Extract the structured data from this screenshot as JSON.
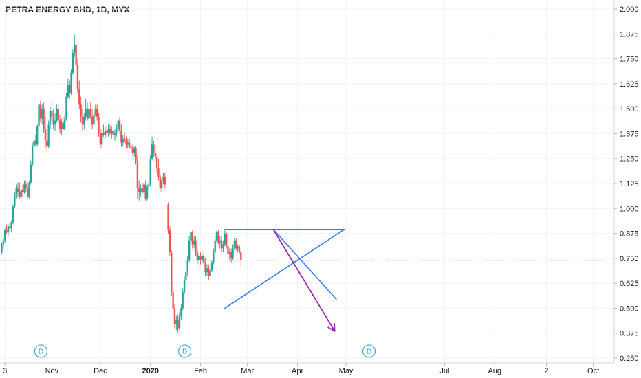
{
  "chart_data": {
    "type": "candlestick",
    "title": "PETRA ENERGY BHD, 1D, MYX",
    "ylim": [
      0.25,
      2.0
    ],
    "y_ticks": [
      "2.000",
      "1.875",
      "1.750",
      "1.625",
      "1.500",
      "1.375",
      "1.250",
      "1.125",
      "1.000",
      "0.875",
      "0.750",
      "0.625",
      "0.500",
      "0.375",
      "0.250"
    ],
    "x_ticks": [
      {
        "label": "3",
        "day": 2
      },
      {
        "label": "Nov",
        "day": 31
      },
      {
        "label": "Dec",
        "day": 61
      },
      {
        "label": "2020",
        "day": 92,
        "bold": true
      },
      {
        "label": "Feb",
        "day": 123
      },
      {
        "label": "Mar",
        "day": 152
      },
      {
        "label": "Apr",
        "day": 183
      },
      {
        "label": "May",
        "day": 213
      },
      {
        "label": "Jul",
        "day": 274
      },
      {
        "label": "Aug",
        "day": 305
      },
      {
        "label": "2",
        "day": 337
      },
      {
        "label": "Oct",
        "day": 366
      }
    ],
    "x_range_days": [
      0,
      380
    ],
    "current_price": 0.74,
    "colors": {
      "up": "#26a69a",
      "down": "#ef5350",
      "price_line": "#26a69a",
      "trendline": "#3179f5",
      "arrow": "#9c27b0",
      "grid": "#f0f3fa",
      "badge": "#2196f3"
    },
    "dividend_markers": [
      {
        "label": "D",
        "day": -3
      },
      {
        "label": "D",
        "day": 86
      },
      {
        "label": "D",
        "day": 200
      }
    ],
    "candles": [
      [
        0,
        0.78,
        0.83,
        0.77,
        0.82
      ],
      [
        1,
        0.82,
        0.85,
        0.8,
        0.84
      ],
      [
        2,
        0.84,
        0.9,
        0.83,
        0.89
      ],
      [
        3,
        0.89,
        0.92,
        0.87,
        0.88
      ],
      [
        4,
        0.88,
        0.92,
        0.86,
        0.91
      ],
      [
        5,
        0.91,
        0.93,
        0.89,
        0.9
      ],
      [
        6,
        0.9,
        0.94,
        0.88,
        0.93
      ],
      [
        7,
        0.93,
        1.02,
        0.92,
        1.01
      ],
      [
        8,
        1.01,
        1.08,
        1.0,
        1.07
      ],
      [
        9,
        1.07,
        1.12,
        1.05,
        1.1
      ],
      [
        10,
        1.1,
        1.13,
        1.06,
        1.08
      ],
      [
        11,
        1.08,
        1.13,
        1.05,
        1.06
      ],
      [
        12,
        1.06,
        1.1,
        1.03,
        1.09
      ],
      [
        13,
        1.09,
        1.12,
        1.06,
        1.08
      ],
      [
        14,
        1.08,
        1.14,
        1.07,
        1.12
      ],
      [
        15,
        1.12,
        1.14,
        1.08,
        1.1
      ],
      [
        16,
        1.1,
        1.13,
        1.05,
        1.06
      ],
      [
        17,
        1.06,
        1.14,
        1.05,
        1.13
      ],
      [
        18,
        1.13,
        1.24,
        1.12,
        1.22
      ],
      [
        19,
        1.22,
        1.33,
        1.21,
        1.31
      ],
      [
        20,
        1.31,
        1.36,
        1.29,
        1.34
      ],
      [
        21,
        1.34,
        1.37,
        1.31,
        1.32
      ],
      [
        22,
        1.32,
        1.42,
        1.31,
        1.41
      ],
      [
        23,
        1.41,
        1.55,
        1.4,
        1.52
      ],
      [
        24,
        1.52,
        1.54,
        1.43,
        1.45
      ],
      [
        25,
        1.45,
        1.52,
        1.42,
        1.5
      ],
      [
        26,
        1.5,
        1.53,
        1.38,
        1.4
      ],
      [
        27,
        1.4,
        1.46,
        1.3,
        1.34
      ],
      [
        28,
        1.34,
        1.4,
        1.28,
        1.31
      ],
      [
        29,
        1.31,
        1.44,
        1.3,
        1.42
      ],
      [
        30,
        1.42,
        1.51,
        1.4,
        1.49
      ],
      [
        31,
        1.49,
        1.54,
        1.44,
        1.46
      ],
      [
        32,
        1.46,
        1.5,
        1.4,
        1.42
      ],
      [
        33,
        1.42,
        1.48,
        1.39,
        1.44
      ],
      [
        34,
        1.44,
        1.52,
        1.43,
        1.5
      ],
      [
        35,
        1.5,
        1.52,
        1.43,
        1.44
      ],
      [
        36,
        1.44,
        1.47,
        1.38,
        1.4
      ],
      [
        37,
        1.4,
        1.45,
        1.37,
        1.43
      ],
      [
        38,
        1.43,
        1.46,
        1.39,
        1.4
      ],
      [
        39,
        1.4,
        1.47,
        1.39,
        1.45
      ],
      [
        40,
        1.45,
        1.58,
        1.44,
        1.56
      ],
      [
        41,
        1.56,
        1.65,
        1.55,
        1.62
      ],
      [
        42,
        1.62,
        1.64,
        1.55,
        1.58
      ],
      [
        43,
        1.58,
        1.7,
        1.57,
        1.68
      ],
      [
        44,
        1.68,
        1.8,
        1.67,
        1.78
      ],
      [
        45,
        1.78,
        1.87,
        1.76,
        1.82
      ],
      [
        46,
        1.82,
        1.84,
        1.7,
        1.72
      ],
      [
        47,
        1.72,
        1.75,
        1.58,
        1.6
      ],
      [
        48,
        1.6,
        1.64,
        1.5,
        1.52
      ],
      [
        49,
        1.52,
        1.56,
        1.43,
        1.46
      ],
      [
        50,
        1.46,
        1.5,
        1.39,
        1.42
      ],
      [
        51,
        1.42,
        1.48,
        1.4,
        1.46
      ],
      [
        52,
        1.46,
        1.55,
        1.44,
        1.5
      ],
      [
        53,
        1.5,
        1.53,
        1.44,
        1.45
      ],
      [
        54,
        1.45,
        1.52,
        1.44,
        1.5
      ],
      [
        55,
        1.5,
        1.53,
        1.45,
        1.46
      ],
      [
        56,
        1.46,
        1.5,
        1.4,
        1.42
      ],
      [
        57,
        1.42,
        1.48,
        1.41,
        1.47
      ],
      [
        58,
        1.47,
        1.52,
        1.46,
        1.5
      ],
      [
        59,
        1.5,
        1.52,
        1.44,
        1.46
      ],
      [
        60,
        1.46,
        1.48,
        1.36,
        1.38
      ],
      [
        61,
        1.38,
        1.4,
        1.3,
        1.32
      ],
      [
        62,
        1.32,
        1.4,
        1.3,
        1.38
      ],
      [
        63,
        1.38,
        1.42,
        1.36,
        1.37
      ],
      [
        64,
        1.37,
        1.41,
        1.35,
        1.39
      ],
      [
        65,
        1.39,
        1.41,
        1.36,
        1.38
      ],
      [
        66,
        1.38,
        1.42,
        1.36,
        1.4
      ],
      [
        67,
        1.4,
        1.42,
        1.37,
        1.38
      ],
      [
        68,
        1.38,
        1.41,
        1.35,
        1.39
      ],
      [
        69,
        1.39,
        1.41,
        1.36,
        1.37
      ],
      [
        70,
        1.37,
        1.4,
        1.34,
        1.38
      ],
      [
        71,
        1.38,
        1.42,
        1.36,
        1.4
      ],
      [
        72,
        1.4,
        1.45,
        1.39,
        1.44
      ],
      [
        73,
        1.44,
        1.46,
        1.38,
        1.39
      ],
      [
        74,
        1.39,
        1.42,
        1.31,
        1.33
      ],
      [
        75,
        1.33,
        1.37,
        1.31,
        1.35
      ],
      [
        76,
        1.35,
        1.38,
        1.33,
        1.34
      ],
      [
        77,
        1.34,
        1.36,
        1.3,
        1.32
      ],
      [
        78,
        1.32,
        1.35,
        1.3,
        1.33
      ],
      [
        79,
        1.33,
        1.35,
        1.3,
        1.31
      ],
      [
        80,
        1.31,
        1.33,
        1.28,
        1.3
      ],
      [
        81,
        1.3,
        1.32,
        1.27,
        1.28
      ],
      [
        82,
        1.28,
        1.31,
        1.26,
        1.3
      ],
      [
        83,
        1.3,
        1.31,
        1.22,
        1.24
      ],
      [
        84,
        1.24,
        1.27,
        1.05,
        1.1
      ],
      [
        85,
        1.1,
        1.14,
        1.04,
        1.08
      ],
      [
        86,
        1.08,
        1.12,
        1.06,
        1.1
      ],
      [
        87,
        1.1,
        1.13,
        1.07,
        1.08
      ],
      [
        88,
        1.08,
        1.13,
        1.07,
        1.12
      ],
      [
        89,
        1.12,
        1.14,
        1.04,
        1.05
      ],
      [
        90,
        1.05,
        1.12,
        1.04,
        1.11
      ],
      [
        91,
        1.11,
        1.14,
        1.09,
        1.12
      ],
      [
        92,
        1.12,
        1.27,
        1.11,
        1.25
      ],
      [
        93,
        1.25,
        1.36,
        1.24,
        1.32
      ],
      [
        94,
        1.32,
        1.34,
        1.26,
        1.28
      ],
      [
        95,
        1.28,
        1.32,
        1.24,
        1.26
      ],
      [
        96,
        1.26,
        1.28,
        1.18,
        1.2
      ],
      [
        97,
        1.2,
        1.25,
        1.14,
        1.16
      ],
      [
        98,
        1.16,
        1.18,
        1.08,
        1.1
      ],
      [
        99,
        1.1,
        1.15,
        1.08,
        1.14
      ],
      [
        100,
        1.14,
        1.18,
        1.12,
        1.16
      ],
      [
        101,
        1.16,
        1.18,
        1.1,
        1.12
      ],
      [
        103,
        1.02,
        1.03,
        0.87,
        0.89
      ],
      [
        104,
        0.89,
        0.91,
        0.76,
        0.78
      ],
      [
        105,
        0.78,
        0.79,
        0.56,
        0.58
      ],
      [
        106,
        0.58,
        0.6,
        0.48,
        0.5
      ],
      [
        107,
        0.5,
        0.52,
        0.4,
        0.42
      ],
      [
        108,
        0.42,
        0.46,
        0.39,
        0.44
      ],
      [
        109,
        0.44,
        0.47,
        0.38,
        0.4
      ],
      [
        110,
        0.4,
        0.48,
        0.39,
        0.46
      ],
      [
        111,
        0.46,
        0.52,
        0.44,
        0.5
      ],
      [
        112,
        0.5,
        0.6,
        0.49,
        0.58
      ],
      [
        113,
        0.58,
        0.66,
        0.57,
        0.64
      ],
      [
        114,
        0.64,
        0.7,
        0.62,
        0.68
      ],
      [
        115,
        0.68,
        0.76,
        0.66,
        0.74
      ],
      [
        116,
        0.74,
        0.86,
        0.73,
        0.84
      ],
      [
        117,
        0.84,
        0.9,
        0.83,
        0.88
      ],
      [
        118,
        0.88,
        0.89,
        0.8,
        0.82
      ],
      [
        119,
        0.82,
        0.86,
        0.8,
        0.84
      ],
      [
        120,
        0.84,
        0.86,
        0.76,
        0.78
      ],
      [
        121,
        0.78,
        0.8,
        0.72,
        0.74
      ],
      [
        122,
        0.74,
        0.77,
        0.72,
        0.76
      ],
      [
        123,
        0.76,
        0.78,
        0.72,
        0.74
      ],
      [
        124,
        0.74,
        0.77,
        0.73,
        0.76
      ],
      [
        125,
        0.76,
        0.78,
        0.72,
        0.73
      ],
      [
        126,
        0.73,
        0.75,
        0.66,
        0.68
      ],
      [
        127,
        0.68,
        0.72,
        0.66,
        0.7
      ],
      [
        128,
        0.7,
        0.72,
        0.64,
        0.66
      ],
      [
        129,
        0.66,
        0.7,
        0.64,
        0.69
      ],
      [
        130,
        0.69,
        0.74,
        0.68,
        0.73
      ],
      [
        131,
        0.73,
        0.8,
        0.72,
        0.78
      ],
      [
        132,
        0.78,
        0.86,
        0.77,
        0.84
      ],
      [
        133,
        0.84,
        0.89,
        0.83,
        0.88
      ],
      [
        134,
        0.88,
        0.89,
        0.82,
        0.83
      ],
      [
        135,
        0.83,
        0.86,
        0.8,
        0.84
      ],
      [
        136,
        0.84,
        0.86,
        0.78,
        0.8
      ],
      [
        137,
        0.8,
        0.84,
        0.78,
        0.82
      ],
      [
        138,
        0.82,
        0.89,
        0.81,
        0.87
      ],
      [
        139,
        0.87,
        0.88,
        0.8,
        0.81
      ],
      [
        140,
        0.81,
        0.83,
        0.76,
        0.77
      ],
      [
        141,
        0.77,
        0.8,
        0.74,
        0.78
      ],
      [
        142,
        0.78,
        0.8,
        0.73,
        0.75
      ],
      [
        143,
        0.75,
        0.82,
        0.74,
        0.8
      ],
      [
        144,
        0.8,
        0.85,
        0.79,
        0.84
      ],
      [
        145,
        0.84,
        0.85,
        0.79,
        0.8
      ],
      [
        146,
        0.8,
        0.82,
        0.78,
        0.81
      ],
      [
        147,
        0.81,
        0.82,
        0.77,
        0.78
      ],
      [
        148,
        0.78,
        0.79,
        0.71,
        0.74
      ]
    ],
    "candle_day_origin": "2019-09-30",
    "annotations": {
      "resistance": {
        "x": [
          138,
          212
        ],
        "y": [
          0.895,
          0.895
        ]
      },
      "support": {
        "x": [
          138,
          212
        ],
        "y": [
          0.5,
          0.895
        ]
      },
      "descending": {
        "x": [
          168,
          207
        ],
        "y": [
          0.895,
          0.545
        ]
      },
      "arrow": {
        "x": [
          168,
          206
        ],
        "y": [
          0.895,
          0.385
        ]
      }
    }
  }
}
